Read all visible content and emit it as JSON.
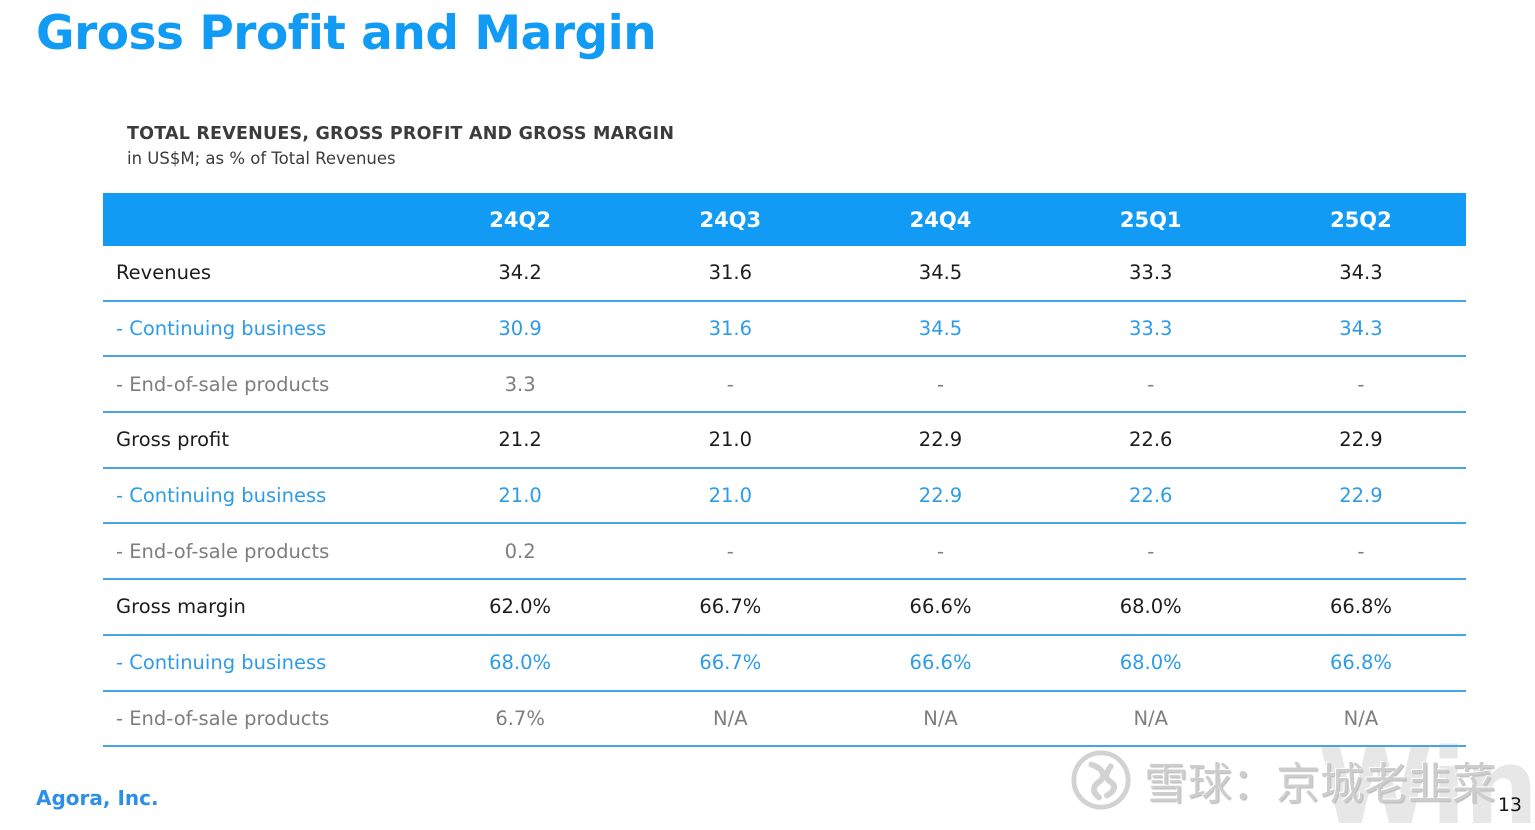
{
  "slide": {
    "title": "Gross Profit and Margin",
    "table_title": "TOTAL REVENUES, GROSS PROFIT AND GROSS MARGIN",
    "table_subtitle": "in US$M; as % of Total Revenues",
    "footer_company": "Agora, Inc.",
    "page_number": "13"
  },
  "table": {
    "columns": [
      "24Q2",
      "24Q3",
      "24Q4",
      "25Q1",
      "25Q2"
    ],
    "rows": [
      {
        "label": "Revenues",
        "style": "normal",
        "values": [
          "34.2",
          "31.6",
          "34.5",
          "33.3",
          "34.3"
        ]
      },
      {
        "label": "- Continuing business",
        "style": "blue",
        "values": [
          "30.9",
          "31.6",
          "34.5",
          "33.3",
          "34.3"
        ]
      },
      {
        "label": "- End-of-sale products",
        "style": "gray",
        "values": [
          "3.3",
          "-",
          "-",
          "-",
          "-"
        ]
      },
      {
        "label": "Gross profit",
        "style": "normal",
        "values": [
          "21.2",
          "21.0",
          "22.9",
          "22.6",
          "22.9"
        ]
      },
      {
        "label": "- Continuing business",
        "style": "blue",
        "values": [
          "21.0",
          "21.0",
          "22.9",
          "22.6",
          "22.9"
        ]
      },
      {
        "label": "- End-of-sale products",
        "style": "gray",
        "values": [
          "0.2",
          "-",
          "-",
          "-",
          "-"
        ]
      },
      {
        "label": "Gross margin",
        "style": "normal",
        "values": [
          "62.0%",
          "66.7%",
          "66.6%",
          "68.0%",
          "66.8%"
        ]
      },
      {
        "label": "- Continuing business",
        "style": "blue",
        "values": [
          "68.0%",
          "66.7%",
          "66.6%",
          "68.0%",
          "66.8%"
        ]
      },
      {
        "label": "- End-of-sale products",
        "style": "gray",
        "values": [
          "6.7%",
          "N/A",
          "N/A",
          "N/A",
          "N/A"
        ]
      }
    ]
  },
  "watermark": {
    "logo": "xueqiu-snowball-logo",
    "text": "雪球：京城老韭菜",
    "background_text": "Wind"
  },
  "colors": {
    "accent_blue": "#129BF4",
    "separator_blue": "#47A5DF",
    "link_blue": "#2D9CE8",
    "muted_gray": "#7E7E7E",
    "text_dark": "#1D1D1D",
    "footer_blue": "#2E8FE8",
    "watermark_gray": "#CDCDCD",
    "wind_gray": "#E7E7E7"
  }
}
